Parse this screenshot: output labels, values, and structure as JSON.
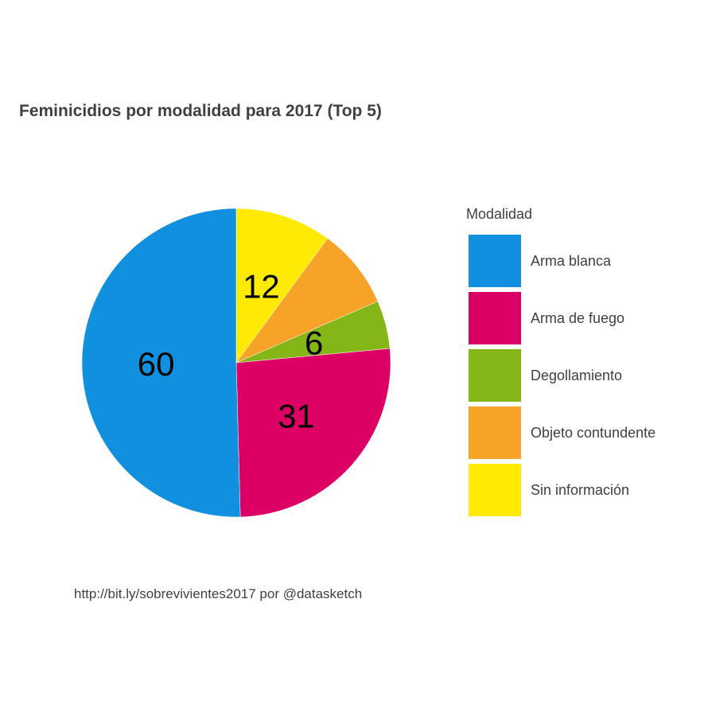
{
  "chart_data": {
    "type": "pie",
    "title": "Feminicidios por modalidad para 2017 (Top 5)",
    "caption": "http://bit.ly/sobrevivientes2017 por @datasketch",
    "legend_title": "Modalidad",
    "legend_position": "right",
    "slices": [
      {
        "label": "Sin información",
        "value": 12,
        "color": "#FEEA05"
      },
      {
        "label": "Objeto contundente",
        "value": 10,
        "color": "#F6A327"
      },
      {
        "label": "Degollamiento",
        "value": 6,
        "color": "#84B618"
      },
      {
        "label": "Arma de fuego",
        "value": 31,
        "color": "#DC0065"
      },
      {
        "label": "Arma blanca",
        "value": 60,
        "color": "#1190DF"
      }
    ],
    "data_labels": {
      "Sin información": "12",
      "Objeto contundente": "",
      "Degollamiento": "6",
      "Arma de fuego": "31",
      "Arma blanca": "60"
    },
    "legend_order": [
      "Arma blanca",
      "Arma de fuego",
      "Degollamiento",
      "Objeto contundente",
      "Sin información"
    ]
  }
}
